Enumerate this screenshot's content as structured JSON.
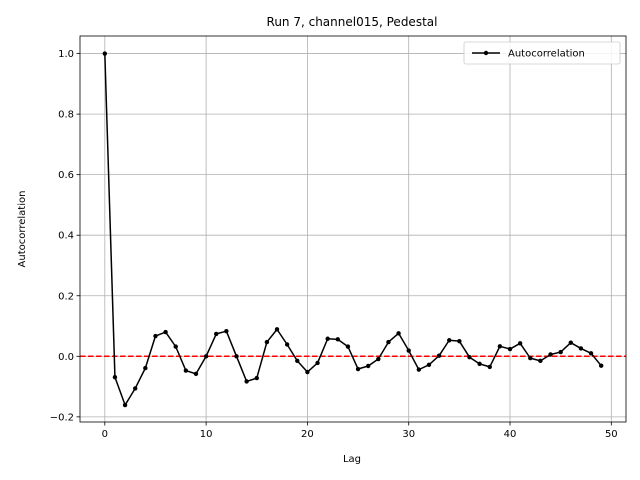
{
  "chart_data": {
    "type": "line",
    "title": "Run 7, channel015, Pedestal",
    "xlabel": "Lag",
    "ylabel": "Autocorrelation",
    "xlim": [
      -2.45,
      51.45
    ],
    "ylim": [
      -0.217,
      1.058
    ],
    "xticks": [
      0,
      10,
      20,
      30,
      40,
      50
    ],
    "xtick_labels": [
      "0",
      "10",
      "20",
      "30",
      "40",
      "50"
    ],
    "yticks": [
      -0.2,
      0.0,
      0.2,
      0.4,
      0.6,
      0.8,
      1.0
    ],
    "ytick_labels": [
      "−0.2",
      "0.0",
      "0.2",
      "0.4",
      "0.6",
      "0.8",
      "1.0"
    ],
    "grid": true,
    "legend": {
      "position": "upper-right",
      "entries": [
        "Autocorrelation"
      ]
    },
    "reference_line": {
      "y": 0.0,
      "color": "#ff0000",
      "style": "dashed"
    },
    "series": [
      {
        "name": "Autocorrelation",
        "color": "#000000",
        "marker": "dot",
        "x": [
          0,
          1,
          2,
          3,
          4,
          5,
          6,
          7,
          8,
          9,
          10,
          11,
          12,
          13,
          14,
          15,
          16,
          17,
          18,
          19,
          20,
          21,
          22,
          23,
          24,
          25,
          26,
          27,
          28,
          29,
          30,
          31,
          32,
          33,
          34,
          35,
          36,
          37,
          38,
          39,
          40,
          41,
          42,
          43,
          44,
          45,
          46,
          47,
          48,
          49
        ],
        "y": [
          1.0,
          -0.069,
          -0.161,
          -0.106,
          -0.039,
          0.067,
          0.08,
          0.032,
          -0.047,
          -0.058,
          0.0,
          0.074,
          0.083,
          0.0,
          -0.083,
          -0.072,
          0.047,
          0.089,
          0.039,
          -0.015,
          -0.052,
          -0.022,
          0.058,
          0.056,
          0.032,
          -0.042,
          -0.032,
          -0.009,
          0.047,
          0.076,
          0.019,
          -0.044,
          -0.028,
          0.002,
          0.053,
          0.05,
          -0.003,
          -0.025,
          -0.035,
          0.033,
          0.024,
          0.043,
          -0.006,
          -0.015,
          0.006,
          0.014,
          0.045,
          0.026,
          0.01,
          -0.031
        ]
      }
    ]
  }
}
